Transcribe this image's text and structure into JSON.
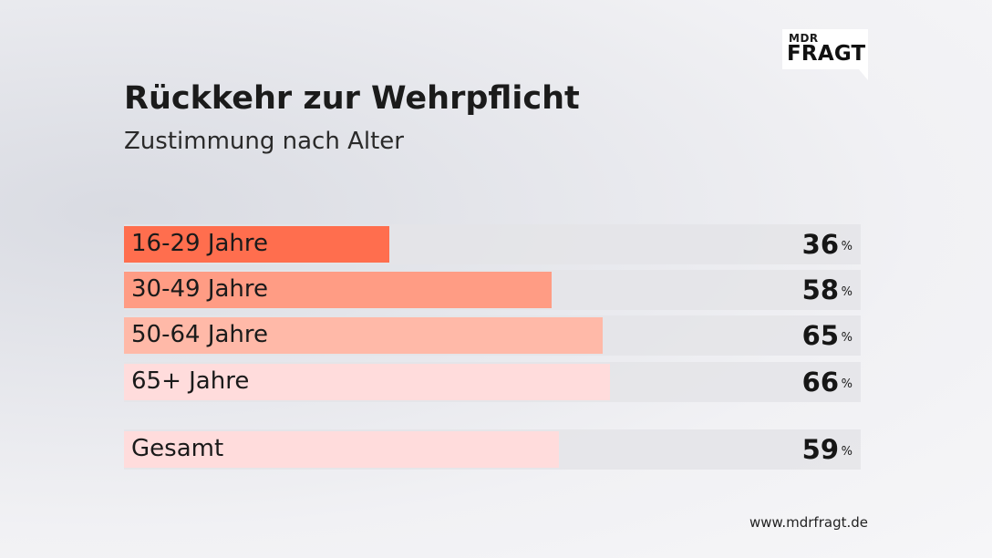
{
  "logo": {
    "top": "MDR",
    "main": "FRAGT"
  },
  "chart_data": {
    "type": "bar",
    "title": "Rückkehr zur Wehrpflicht",
    "subtitle": "Zustimmung nach Alter",
    "unit": "%",
    "xlim": [
      0,
      100
    ],
    "orientation": "horizontal",
    "categories": [
      "16-29 Jahre",
      "30-49 Jahre",
      "50-64 Jahre",
      "65+ Jahre",
      "Gesamt"
    ],
    "values": [
      36,
      58,
      65,
      66,
      59
    ],
    "value_labels": [
      "36",
      "58",
      "65",
      "66",
      "59"
    ],
    "colors": [
      "#ff6e4e",
      "#ff9c84",
      "#ffb9a8",
      "#ffdcdc",
      "#ffdcdc"
    ]
  },
  "footer": {
    "source": "www.mdrfragt.de"
  }
}
